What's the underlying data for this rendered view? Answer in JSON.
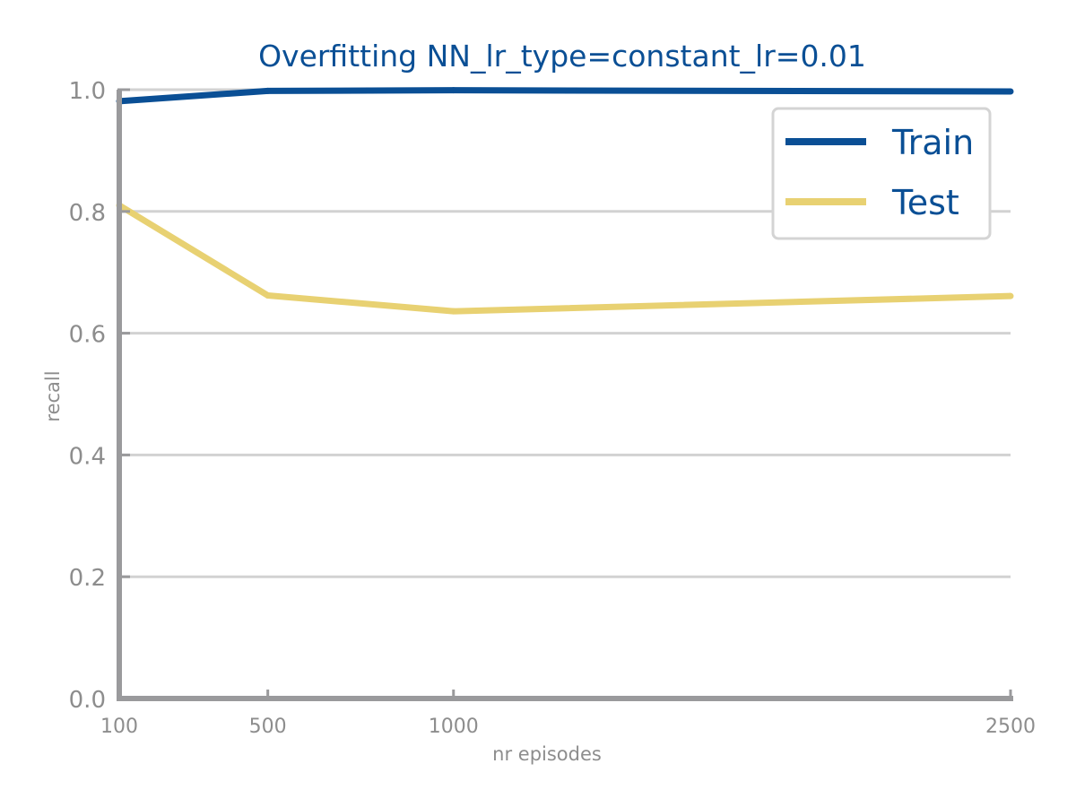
{
  "chart_data": {
    "type": "line",
    "title": "Overfitting NN_lr_type=constant_lr=0.01",
    "xlabel": "nr episodes",
    "ylabel": "recall",
    "x": [
      100,
      500,
      1000,
      2500
    ],
    "x_tick_labels": [
      "100",
      "500",
      "1000",
      "2500"
    ],
    "xlim": [
      100,
      2500
    ],
    "ylim": [
      0.0,
      1.0
    ],
    "y_ticks": [
      0.0,
      0.2,
      0.4,
      0.6,
      0.8,
      1.0
    ],
    "y_tick_labels": [
      "0.0",
      "0.2",
      "0.4",
      "0.6",
      "0.8",
      "1.0"
    ],
    "grid": "horizontal",
    "legend_position": "top-right",
    "series": [
      {
        "name": "Train",
        "color": "#0a4f95",
        "values": [
          0.981,
          0.998,
          0.999,
          0.997
        ]
      },
      {
        "name": "Test",
        "color": "#e8d172",
        "values": [
          0.81,
          0.662,
          0.636,
          0.661
        ]
      }
    ]
  }
}
